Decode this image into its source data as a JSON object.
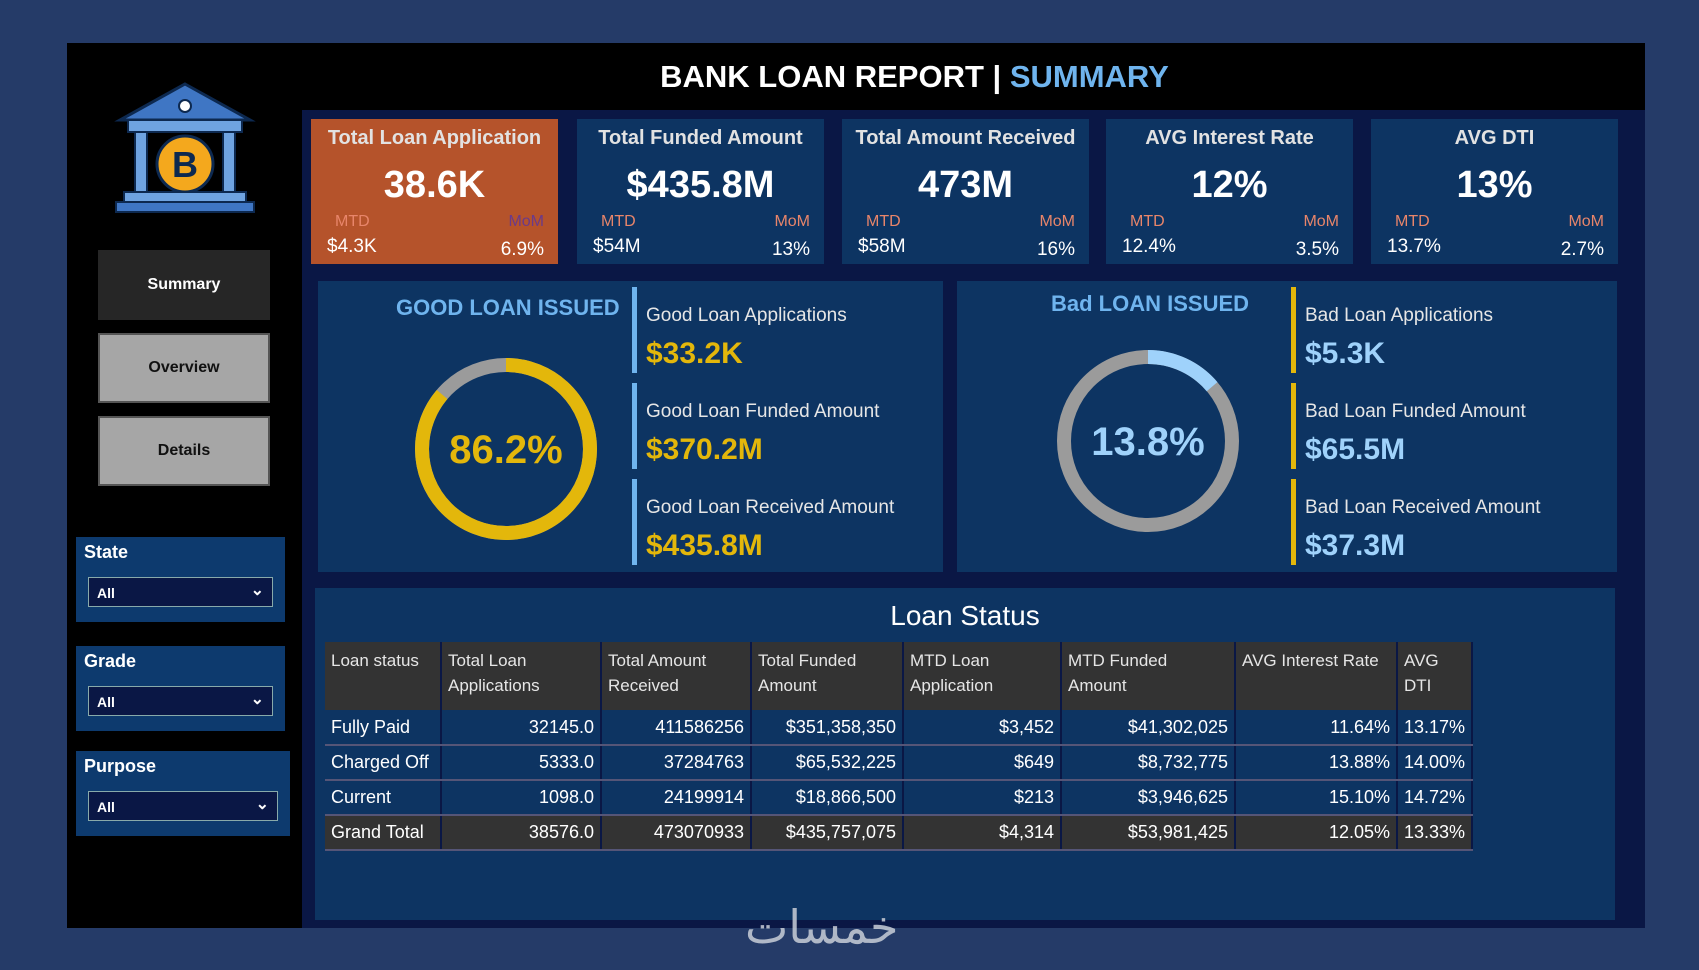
{
  "header": {
    "title_main": "BANK LOAN REPORT | ",
    "title_accent": "SUMMARY"
  },
  "nav": [
    {
      "label": "Summary"
    },
    {
      "label": "Overview"
    },
    {
      "label": "Details"
    }
  ],
  "filters": [
    {
      "label": "State",
      "value": "All"
    },
    {
      "label": "Grade",
      "value": "All"
    },
    {
      "label": "Purpose",
      "value": "All"
    }
  ],
  "kpis": [
    {
      "title": "Total Loan Application",
      "value": "38.6K",
      "mtd_label": "MTD",
      "mtd": "$4.3K",
      "mom_label": "MoM",
      "mom": "6.9%"
    },
    {
      "title": "Total Funded Amount",
      "value": "$435.8M",
      "mtd_label": "MTD",
      "mtd": "$54M",
      "mom_label": "MoM",
      "mom": "13%"
    },
    {
      "title": "Total Amount Received",
      "value": "473M",
      "mtd_label": "MTD",
      "mtd": "$58M",
      "mom_label": "MoM",
      "mom": "16%"
    },
    {
      "title": "AVG Interest Rate",
      "value": "12%",
      "mtd_label": "MTD",
      "mtd": "12.4%",
      "mom_label": "MoM",
      "mom": "3.5%"
    },
    {
      "title": "AVG DTI",
      "value": "13%",
      "mtd_label": "MTD",
      "mtd": "13.7%",
      "mom_label": "MoM",
      "mom": "2.7%"
    }
  ],
  "good": {
    "title": "GOOD LOAN ISSUED",
    "percent_label": "86.2%",
    "percent": 86.2,
    "color": "#e3b70b",
    "stats": [
      {
        "label": "Good Loan Applications",
        "value": "$33.2K"
      },
      {
        "label": "Good Loan Funded Amount",
        "value": "$370.2M"
      },
      {
        "label": "Good Loan Received Amount",
        "value": "$435.8M"
      }
    ]
  },
  "bad": {
    "title": "Bad LOAN ISSUED",
    "percent_label": "13.8%",
    "percent": 13.8,
    "color": "#9fd2fb",
    "stats": [
      {
        "label": "Bad Loan Applications",
        "value": "$5.3K"
      },
      {
        "label": "Bad Loan Funded Amount",
        "value": "$65.5M"
      },
      {
        "label": "Bad Loan Received Amount",
        "value": "$37.3M"
      }
    ]
  },
  "table": {
    "title": "Loan Status",
    "headers": [
      "Loan status",
      "Total Loan Applications",
      "Total Amount Received",
      "Total Funded Amount",
      "MTD Loan Application",
      "MTD Funded Amount",
      "AVG Interest Rate",
      "AVG DTI"
    ],
    "rows": [
      [
        "Fully Paid",
        "32145.0",
        "411586256",
        "$351,358,350",
        "$3,452",
        "$41,302,025",
        "11.64%",
        "13.17%"
      ],
      [
        "Charged Off",
        "5333.0",
        "37284763",
        "$65,532,225",
        "$649",
        "$8,732,775",
        "13.88%",
        "14.00%"
      ],
      [
        "Current",
        "1098.0",
        "24199914",
        "$18,866,500",
        "$213",
        "$3,946,625",
        "15.10%",
        "14.72%"
      ]
    ],
    "total": [
      "Grand Total",
      "38576.0",
      "473070933",
      "$435,757,075",
      "$4,314",
      "$53,981,425",
      "12.05%",
      "13.33%"
    ]
  },
  "watermark": "خمسات"
}
